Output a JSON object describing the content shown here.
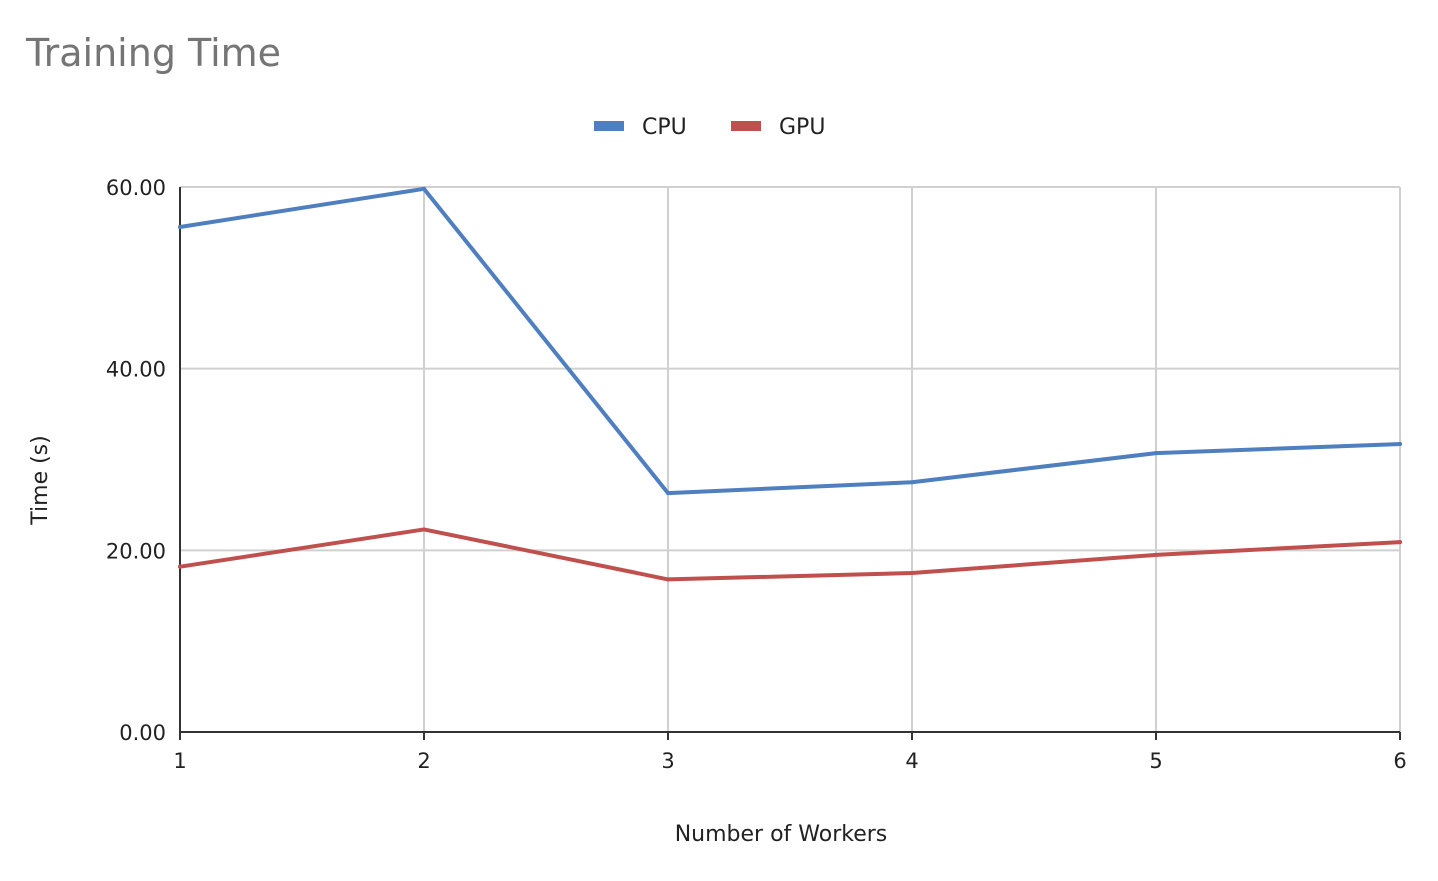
{
  "chart_data": {
    "type": "line",
    "title": "Training Time",
    "xlabel": "Number of Workers",
    "ylabel": "Time (s)",
    "x": [
      1,
      2,
      3,
      4,
      5,
      6
    ],
    "x_tick_labels": [
      "1",
      "2",
      "3",
      "4",
      "5",
      "6"
    ],
    "ylim": [
      0,
      60
    ],
    "y_ticks": [
      0,
      20,
      40,
      60
    ],
    "y_tick_labels": [
      "0.00",
      "20.00",
      "40.00",
      "60.00"
    ],
    "grid": true,
    "legend": "top-center",
    "series": [
      {
        "name": "CPU",
        "color": "#4f7fbf",
        "values": [
          55.6,
          59.8,
          26.3,
          27.5,
          30.7,
          31.7
        ]
      },
      {
        "name": "GPU",
        "color": "#c0504d",
        "values": [
          18.2,
          22.3,
          16.8,
          17.5,
          19.5,
          20.9
        ]
      }
    ]
  }
}
